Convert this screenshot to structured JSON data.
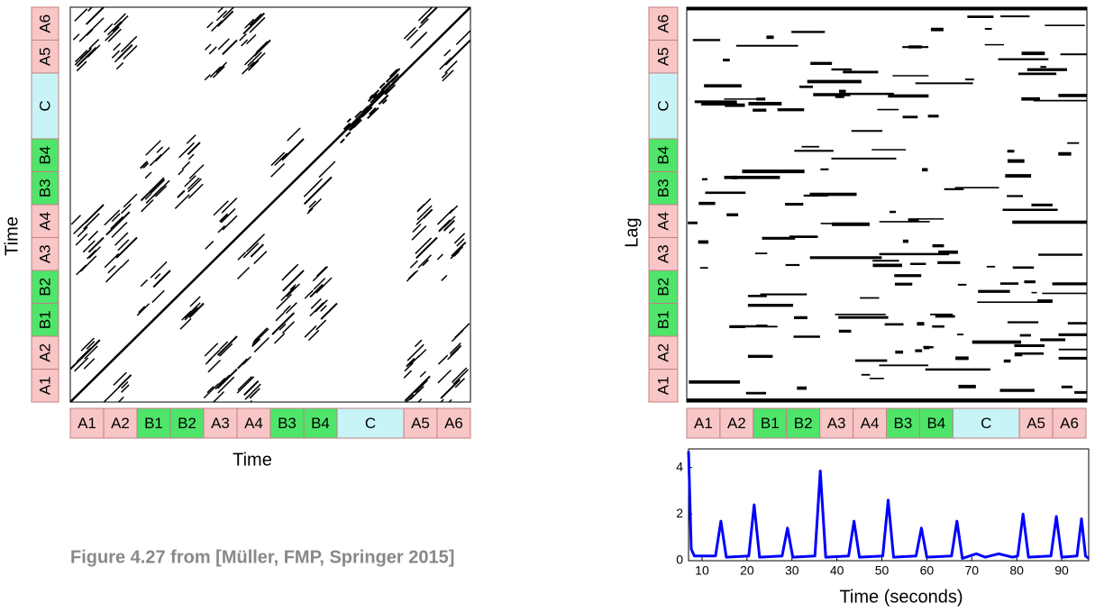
{
  "figure": {
    "caption": "Figure 4.27 from [Müller, FMP, Springer 2015]",
    "segments": [
      "A1",
      "A2",
      "B1",
      "B2",
      "A3",
      "A4",
      "B3",
      "B4",
      "C",
      "A5",
      "A6"
    ],
    "ssm": {
      "xlabel": "Time",
      "ylabel": "Time"
    },
    "lag": {
      "ylabel": "Lag"
    }
  },
  "chart_data": {
    "type": "line",
    "xlabel": "Time (seconds)",
    "x": [
      7,
      7.6,
      8.3,
      13,
      14.2,
      15.4,
      20.4,
      21.6,
      22.8,
      27.8,
      29,
      30.2,
      35.1,
      36.3,
      37.5,
      42.6,
      43.8,
      45,
      50.2,
      51.4,
      52.6,
      57.6,
      58.8,
      60,
      65.5,
      66.7,
      67.9,
      71,
      73,
      76,
      79,
      80.2,
      81.4,
      82.6,
      87.6,
      88.8,
      90,
      93.4,
      94.4,
      95.3,
      96
    ],
    "series": [
      {
        "color": "#0000ff",
        "values": [
          4.7,
          0.5,
          0.2,
          0.2,
          1.7,
          0.15,
          0.2,
          2.4,
          0.15,
          0.2,
          1.4,
          0.15,
          0.2,
          3.85,
          0.15,
          0.2,
          1.7,
          0.15,
          0.2,
          2.6,
          0.15,
          0.2,
          1.4,
          0.15,
          0.2,
          1.7,
          0.1,
          0.3,
          0.15,
          0.3,
          0.15,
          0.2,
          2.0,
          0.15,
          0.2,
          1.9,
          0.15,
          0.2,
          1.8,
          0.2,
          0.1
        ]
      }
    ],
    "xlim": [
      7,
      96
    ],
    "ylim": [
      0,
      4.8
    ],
    "xticks": [
      10,
      20,
      30,
      40,
      50,
      60,
      70,
      80,
      90
    ],
    "yticks": [
      0,
      2,
      4
    ]
  }
}
